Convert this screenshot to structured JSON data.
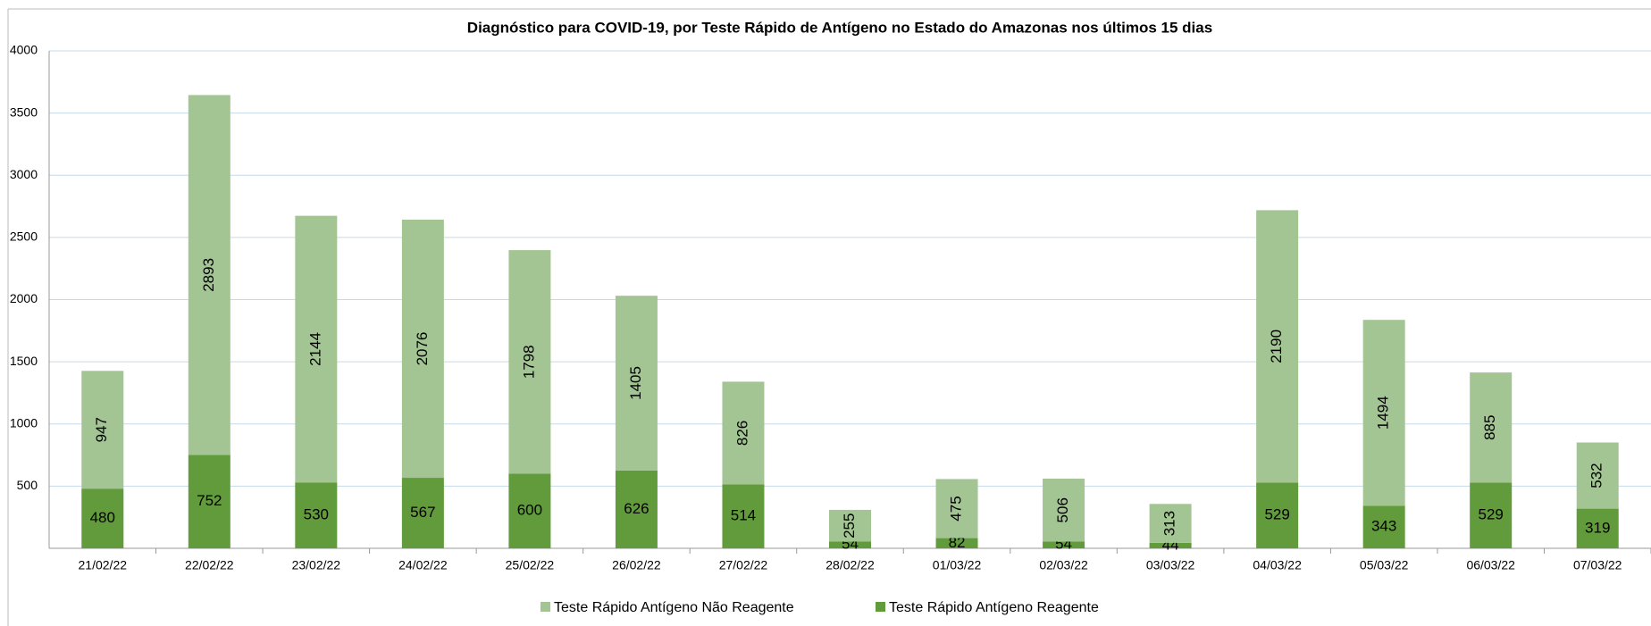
{
  "chart_data": {
    "type": "bar",
    "stacked": true,
    "title": "Diagnóstico para COVID-19, por  Teste Rápido de Antígeno no Estado do Amazonas nos últimos 15 dias",
    "categories": [
      "21/02/22",
      "22/02/22",
      "23/02/22",
      "24/02/22",
      "25/02/22",
      "26/02/22",
      "27/02/22",
      "28/02/22",
      "01/03/22",
      "02/03/22",
      "03/03/22",
      "04/03/22",
      "05/03/22",
      "06/03/22",
      "07/03/22"
    ],
    "series": [
      {
        "name": "Teste Rápido Antígeno Não Reagente",
        "color": "#a3c594",
        "values": [
          947,
          2893,
          2144,
          2076,
          1798,
          1405,
          826,
          255,
          475,
          506,
          313,
          2190,
          1494,
          885,
          532
        ]
      },
      {
        "name": "Teste Rápido Antígeno Reagente",
        "color": "#629b3b",
        "values": [
          480,
          752,
          530,
          567,
          600,
          626,
          514,
          54,
          82,
          54,
          44,
          529,
          343,
          529,
          319
        ]
      }
    ],
    "ylim": [
      0,
      4000
    ],
    "yticks": [
      500,
      1000,
      1500,
      2000,
      2500,
      3000,
      3500,
      4000
    ],
    "grid": true,
    "legend": "bottom"
  }
}
